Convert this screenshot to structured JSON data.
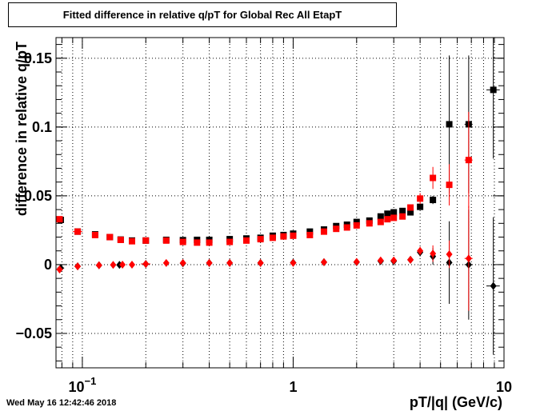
{
  "title": "Fitted difference in relative q/pT for Global Rec All EtapT",
  "footer": "Wed May 16 12:42:46 2018",
  "chart_data": {
    "type": "scatter",
    "title": "Fitted difference in relative q/pT for Global Rec All EtapT",
    "xlabel": "pT/|q| (GeV/c)",
    "ylabel": "difference in relative q/pT",
    "xscale": "log",
    "xlim": [
      0.075,
      10
    ],
    "ylim": [
      -0.075,
      0.165
    ],
    "grid": true,
    "x_tick_labels": [
      {
        "x": 0.1,
        "base": "10",
        "exp": "−1"
      },
      {
        "x": 1,
        "text": "1"
      },
      {
        "x": 10,
        "text": "10"
      }
    ],
    "y_ticks": [
      {
        "y": -0.05,
        "label": "−0.05"
      },
      {
        "y": 0,
        "label": "0"
      },
      {
        "y": 0.05,
        "label": "0.05"
      },
      {
        "y": 0.1,
        "label": "0.1"
      },
      {
        "y": 0.15,
        "label": "0.15"
      }
    ],
    "series": [
      {
        "color": "#000000",
        "marker": "square",
        "points": [
          [
            0.079,
            0.0325,
            0.003,
            0.0
          ],
          [
            0.095,
            0.024,
            0.006,
            0.0
          ],
          [
            0.115,
            0.022,
            0.006,
            0.0
          ],
          [
            0.135,
            0.02,
            0.006,
            0.0
          ],
          [
            0.152,
            0.0182,
            0.004,
            0.0
          ],
          [
            0.172,
            0.0175,
            0.006,
            0.0
          ],
          [
            0.2,
            0.0175,
            0.01,
            0.0
          ],
          [
            0.25,
            0.018,
            0.0,
            0.0
          ],
          [
            0.3,
            0.0178,
            0.0,
            0.0
          ],
          [
            0.35,
            0.018,
            0.0,
            0.0
          ],
          [
            0.4,
            0.018,
            0.0,
            0.0
          ],
          [
            0.5,
            0.0185,
            0.0,
            0.0
          ],
          [
            0.6,
            0.019,
            0.0,
            0.0
          ],
          [
            0.7,
            0.0195,
            0.0,
            0.0
          ],
          [
            0.8,
            0.021,
            0.0,
            0.0
          ],
          [
            0.9,
            0.0215,
            0.0,
            0.0
          ],
          [
            1.0,
            0.0225,
            0.0,
            0.0
          ],
          [
            1.2,
            0.024,
            0.0,
            0.0
          ],
          [
            1.4,
            0.0255,
            0.0,
            0.0
          ],
          [
            1.6,
            0.028,
            0.0,
            0.0
          ],
          [
            1.8,
            0.029,
            0.0,
            0.0
          ],
          [
            2.0,
            0.031,
            0.0,
            0.0
          ],
          [
            2.3,
            0.032,
            0.0,
            0.0
          ],
          [
            2.6,
            0.035,
            0.0,
            0.0
          ],
          [
            2.8,
            0.037,
            0.0,
            0.0
          ],
          [
            3.0,
            0.038,
            0.0,
            0.0
          ],
          [
            3.3,
            0.039,
            0.0,
            0.0
          ],
          [
            3.6,
            0.038,
            0.0,
            0.001
          ],
          [
            4.0,
            0.042,
            0.0,
            0.002
          ],
          [
            4.6,
            0.047,
            0.0,
            0.003
          ],
          [
            5.5,
            0.102,
            0.3,
            0.05
          ],
          [
            6.8,
            0.102,
            0.6,
            0.05
          ],
          [
            8.9,
            0.127,
            1.3,
            0.05
          ]
        ]
      },
      {
        "color": "#000000",
        "marker": "diamond",
        "points": [
          [
            0.079,
            -0.0025,
            0.006,
            0.0
          ],
          [
            0.095,
            -0.0012,
            0.006,
            0.0
          ],
          [
            0.12,
            -0.0005,
            0.007,
            0.0
          ],
          [
            0.15,
            -0.0002,
            0.005,
            0.0
          ],
          [
            0.2,
            0.0005,
            0.02,
            0.0
          ],
          [
            0.3,
            0.001,
            0.0,
            0.0
          ],
          [
            0.4,
            0.0012,
            0.0,
            0.0
          ],
          [
            0.5,
            0.0012,
            0.0,
            0.0
          ],
          [
            0.7,
            0.0012,
            0.0,
            0.0
          ],
          [
            1.0,
            0.0014,
            0.0,
            0.0
          ],
          [
            1.4,
            0.0018,
            0.0,
            0.0
          ],
          [
            2.0,
            0.0018,
            0.0,
            0.0
          ],
          [
            2.6,
            0.0025,
            0.0,
            0.0
          ],
          [
            3.0,
            0.0025,
            0.0,
            0.0
          ],
          [
            3.6,
            0.0035,
            0.0,
            0.001
          ],
          [
            4.0,
            0.009,
            0.0,
            0.003
          ],
          [
            4.6,
            0.006,
            0.0,
            0.006
          ],
          [
            5.5,
            0.0015,
            0.3,
            0.03
          ],
          [
            6.8,
            0.0,
            0.6,
            0.04
          ],
          [
            8.9,
            -0.0155,
            1.3,
            0.05
          ]
        ]
      },
      {
        "color": "#ff0000",
        "marker": "square",
        "points": [
          [
            0.078,
            0.033,
            0.003,
            0.0
          ],
          [
            0.095,
            0.024,
            0.01,
            0.0
          ],
          [
            0.115,
            0.0215,
            0.007,
            0.0
          ],
          [
            0.135,
            0.02,
            0.005,
            0.0
          ],
          [
            0.152,
            0.018,
            0.004,
            0.0
          ],
          [
            0.172,
            0.017,
            0.006,
            0.0
          ],
          [
            0.2,
            0.0175,
            0.01,
            0.0
          ],
          [
            0.25,
            0.0175,
            0.0,
            0.0
          ],
          [
            0.3,
            0.0165,
            0.0,
            0.0
          ],
          [
            0.35,
            0.016,
            0.0,
            0.0
          ],
          [
            0.4,
            0.016,
            0.0,
            0.0
          ],
          [
            0.5,
            0.0165,
            0.0,
            0.0
          ],
          [
            0.6,
            0.0175,
            0.0,
            0.0
          ],
          [
            0.7,
            0.0185,
            0.0,
            0.0
          ],
          [
            0.8,
            0.0195,
            0.0,
            0.0
          ],
          [
            0.9,
            0.0205,
            0.0,
            0.0
          ],
          [
            1.0,
            0.021,
            0.0,
            0.0
          ],
          [
            1.2,
            0.0215,
            0.0,
            0.0
          ],
          [
            1.4,
            0.024,
            0.0,
            0.0
          ],
          [
            1.6,
            0.026,
            0.0,
            0.0
          ],
          [
            1.8,
            0.027,
            0.0,
            0.0
          ],
          [
            2.0,
            0.0285,
            0.0,
            0.0
          ],
          [
            2.3,
            0.03,
            0.0,
            0.0
          ],
          [
            2.6,
            0.031,
            0.0,
            0.0
          ],
          [
            2.8,
            0.033,
            0.0,
            0.0
          ],
          [
            3.0,
            0.034,
            0.0,
            0.0
          ],
          [
            3.3,
            0.035,
            0.0,
            0.0
          ],
          [
            3.6,
            0.0415,
            0.0,
            0.002
          ],
          [
            4.0,
            0.048,
            0.0,
            0.004
          ],
          [
            4.6,
            0.063,
            0.0,
            0.008
          ],
          [
            5.5,
            0.058,
            0.3,
            0.015
          ],
          [
            6.8,
            0.076,
            0.6,
            0.035
          ]
        ]
      },
      {
        "color": "#ff0000",
        "marker": "diamond",
        "points": [
          [
            0.078,
            -0.0035,
            0.006,
            0.0
          ],
          [
            0.095,
            -0.0013,
            0.006,
            0.0
          ],
          [
            0.12,
            -0.0005,
            0.005,
            0.0
          ],
          [
            0.14,
            -0.0002,
            0.004,
            0.0
          ],
          [
            0.155,
            0.0,
            0.004,
            0.0
          ],
          [
            0.172,
            0.0,
            0.006,
            0.0
          ],
          [
            0.2,
            0.0005,
            0.02,
            0.0
          ],
          [
            0.25,
            0.0012,
            0.0,
            0.0
          ],
          [
            0.3,
            0.0012,
            0.0,
            0.0
          ],
          [
            0.4,
            0.0012,
            0.0,
            0.0
          ],
          [
            0.5,
            0.0012,
            0.0,
            0.0
          ],
          [
            0.7,
            0.0012,
            0.0,
            0.0
          ],
          [
            1.0,
            0.0013,
            0.0,
            0.0
          ],
          [
            1.4,
            0.0018,
            0.0,
            0.0
          ],
          [
            2.0,
            0.002,
            0.0,
            0.0
          ],
          [
            2.6,
            0.003,
            0.0,
            0.0
          ],
          [
            3.0,
            0.003,
            0.0,
            0.0
          ],
          [
            3.6,
            0.0035,
            0.0,
            0.001
          ],
          [
            4.0,
            0.01,
            0.0,
            0.003
          ],
          [
            4.6,
            0.008,
            0.0,
            0.006
          ],
          [
            5.5,
            0.0075,
            0.3,
            0.01
          ],
          [
            6.8,
            0.0045,
            0.6,
            0.038
          ]
        ]
      }
    ]
  }
}
